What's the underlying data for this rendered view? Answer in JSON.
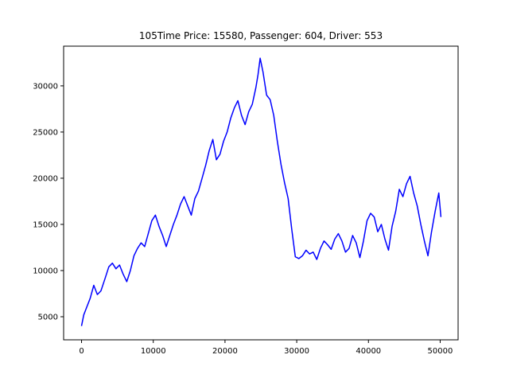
{
  "chart_data": {
    "type": "line",
    "title": "105Time Price: 15580, Passenger: 604, Driver: 553",
    "xlabel": "",
    "ylabel": "",
    "xlim": [
      -2500,
      52500
    ],
    "ylim": [
      2500,
      34300
    ],
    "x_ticks": [
      0,
      10000,
      20000,
      30000,
      40000,
      50000
    ],
    "x_tick_labels": [
      "0",
      "10000",
      "20000",
      "30000",
      "40000",
      "50000"
    ],
    "y_ticks": [
      5000,
      10000,
      15000,
      20000,
      25000,
      30000
    ],
    "y_tick_labels": [
      "5000",
      "10000",
      "15000",
      "20000",
      "25000",
      "30000"
    ],
    "grid": false,
    "series": [
      {
        "color": "#0000ff",
        "x": [
          0,
          300,
          700,
          1200,
          1700,
          2200,
          2700,
          3300,
          3800,
          4300,
          4800,
          5300,
          5800,
          6300,
          6800,
          7300,
          7800,
          8300,
          8800,
          9300,
          9800,
          10300,
          10800,
          11300,
          11800,
          12300,
          12800,
          13300,
          13800,
          14300,
          14800,
          15300,
          15800,
          16300,
          16800,
          17300,
          17800,
          18300,
          18800,
          19300,
          19800,
          20300,
          20800,
          21300,
          21800,
          22300,
          22800,
          23300,
          23800,
          24300,
          24600,
          24900,
          25300,
          25800,
          26300,
          26800,
          27300,
          27800,
          28300,
          28800,
          29300,
          29800,
          30300,
          30800,
          31300,
          31800,
          32300,
          32800,
          33300,
          33800,
          34300,
          34800,
          35300,
          35800,
          36300,
          36800,
          37300,
          37800,
          38300,
          38800,
          39300,
          39800,
          40300,
          40800,
          41300,
          41800,
          42300,
          42800,
          43300,
          43800,
          44300,
          44800,
          45300,
          45800,
          46300,
          46800,
          47300,
          47800,
          48300,
          48800,
          49300,
          49800,
          50100
        ],
        "y": [
          4000,
          5200,
          6000,
          7000,
          8400,
          7400,
          7800,
          9200,
          10400,
          10800,
          10200,
          10600,
          9600,
          8800,
          10000,
          11600,
          12400,
          13000,
          12600,
          14000,
          15400,
          16000,
          14800,
          13800,
          12600,
          13800,
          15000,
          16000,
          17200,
          18000,
          17000,
          16000,
          17800,
          18600,
          20000,
          21400,
          23000,
          24200,
          22000,
          22600,
          24000,
          25000,
          26500,
          27600,
          28400,
          26800,
          25800,
          27200,
          28000,
          29800,
          31200,
          33000,
          31500,
          29000,
          28500,
          26800,
          24000,
          21500,
          19500,
          17800,
          14500,
          11500,
          11300,
          11600,
          12200,
          11800,
          12000,
          11200,
          12400,
          13200,
          12800,
          12300,
          13400,
          14000,
          13200,
          12000,
          12400,
          13800,
          13000,
          11400,
          13200,
          15400,
          16200,
          15800,
          14200,
          15000,
          13400,
          12200,
          14800,
          16400,
          18800,
          18000,
          19400,
          20200,
          18400,
          17000,
          15000,
          13200,
          11600,
          14200,
          16400,
          18400,
          15800
        ]
      }
    ]
  }
}
